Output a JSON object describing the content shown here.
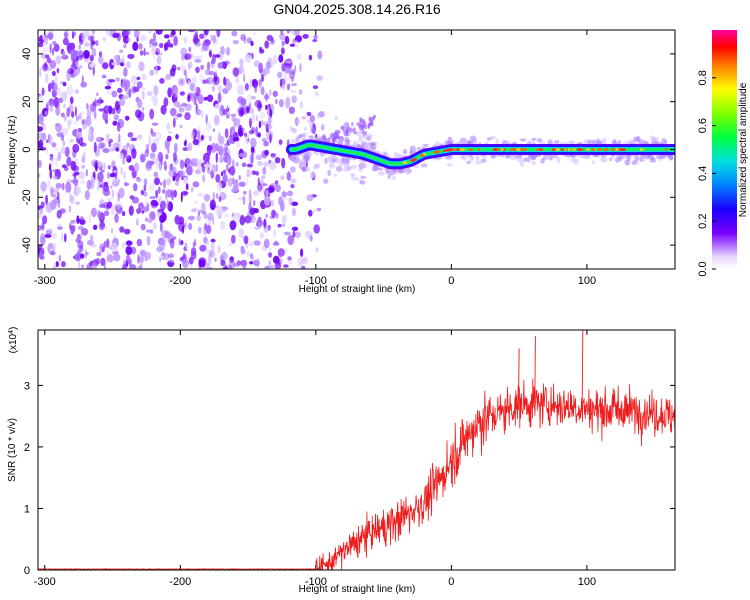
{
  "title": "GN04.2025.308.14.26.R16",
  "chart_data": [
    {
      "type": "heatmap",
      "name": "spectrogram",
      "xlabel": "Height of straight line (km)",
      "ylabel": "Frequency (Hz)",
      "xlim": [
        -305,
        165
      ],
      "ylim": [
        -50,
        50
      ],
      "xticks": [
        -300,
        -200,
        -100,
        0,
        100
      ],
      "xtick_labels": [
        "-300",
        "-200",
        "-100",
        "0",
        "100"
      ],
      "yticks": [
        -40,
        -20,
        0,
        20,
        40
      ],
      "ytick_labels": [
        "-40",
        "-20",
        "0",
        "20",
        "40"
      ],
      "ridge": {
        "x": [
          -115,
          -105,
          -95,
          -85,
          -75,
          -65,
          -55,
          -45,
          -38,
          -30,
          -20,
          -10,
          0,
          10,
          30,
          60,
          90,
          120,
          150,
          165
        ],
        "y": [
          0,
          2,
          1,
          0,
          -1,
          -2,
          -4,
          -6,
          -6,
          -5,
          -2,
          -1,
          0,
          0,
          0,
          0,
          0,
          0,
          0,
          0
        ]
      },
      "noise_region_x": [
        -305,
        -115
      ],
      "colorbar": {
        "label": "Normalized spectral amplitude",
        "range": [
          0,
          1
        ],
        "ticks": [
          0.0,
          0.2,
          0.4,
          0.6,
          0.8
        ],
        "tick_labels": [
          "0.0",
          "0.2",
          "0.4",
          "0.6",
          "0.8"
        ]
      }
    },
    {
      "type": "line",
      "name": "snr",
      "color": "#ee1c1c",
      "xlabel": "Height of straight line (km)",
      "ylabel": "SNR (10 * v/v)",
      "scale_label": "(x10",
      "scale_exp": "4",
      "scale_close": ")",
      "xlim": [
        -305,
        165
      ],
      "ylim": [
        0,
        3.9
      ],
      "xticks": [
        -300,
        -200,
        -100,
        0,
        100
      ],
      "xtick_labels": [
        "-300",
        "-200",
        "-100",
        "0",
        "100"
      ],
      "yticks": [
        0,
        1,
        2,
        3
      ],
      "ytick_labels": [
        "0",
        "1",
        "2",
        "3"
      ],
      "trend": {
        "x": [
          -305,
          -100,
          -90,
          -80,
          -60,
          -40,
          -20,
          -10,
          0,
          10,
          20,
          30,
          50,
          70,
          90,
          110,
          130,
          150,
          165
        ],
        "y": [
          0.0,
          0.0,
          0.1,
          0.3,
          0.6,
          0.8,
          1.1,
          1.4,
          1.8,
          2.1,
          2.4,
          2.5,
          2.7,
          2.7,
          2.65,
          2.6,
          2.6,
          2.55,
          2.5
        ]
      },
      "peak_points": [
        {
          "x": 62,
          "y": 3.8
        },
        {
          "x": 97,
          "y": 3.9
        },
        {
          "x": 50,
          "y": 3.6
        }
      ]
    }
  ]
}
